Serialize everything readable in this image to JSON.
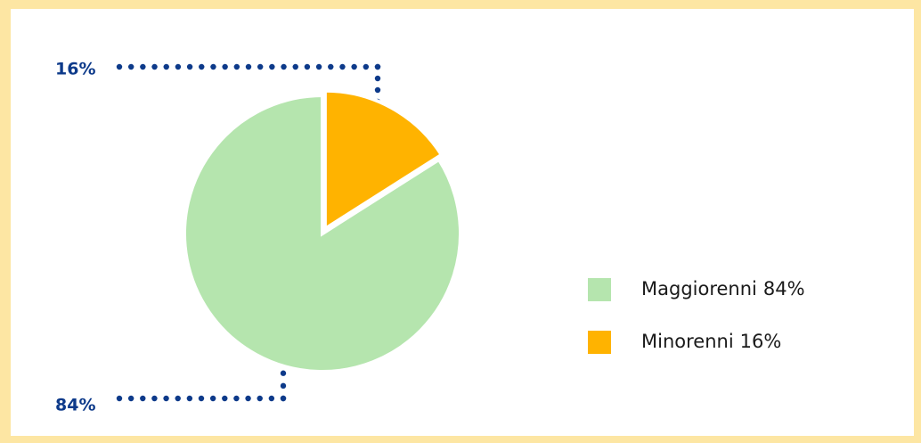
{
  "chart_data": {
    "type": "pie",
    "categories": [
      "Maggiorenni",
      "Minorenni"
    ],
    "values": [
      84,
      16
    ],
    "value_labels": [
      "84%",
      "16%"
    ],
    "colors": [
      "#b5e5ae",
      "#ffb300"
    ],
    "legend": "right"
  }
}
